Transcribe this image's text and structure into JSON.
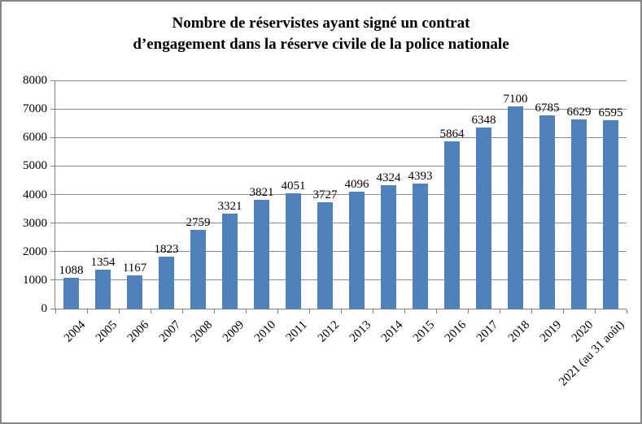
{
  "frame": {
    "background": "#FFFFFF",
    "border_color": "#878787"
  },
  "chart_data": {
    "type": "bar",
    "title": "Nombre de réservistes ayant signé un contrat d’engagement dans la réserve civile de la police nationale",
    "title_lines": [
      "Nombre de réservistes ayant signé un contrat",
      "d’engagement dans la réserve civile de la police nationale"
    ],
    "categories": [
      "2004",
      "2005",
      "2006",
      "2007",
      "2008",
      "2009",
      "2010",
      "2011",
      "2012",
      "2013",
      "2014",
      "2015",
      "2016",
      "2017",
      "2018",
      "2019",
      "2020",
      "2021 (au 31 août)"
    ],
    "values": [
      1088,
      1354,
      1167,
      1823,
      2759,
      3321,
      3821,
      4051,
      3727,
      4096,
      4324,
      4393,
      5864,
      6348,
      7100,
      6785,
      6629,
      6595
    ],
    "xlabel": "",
    "ylabel": "",
    "ylim": [
      0,
      8000
    ],
    "ytick_step": 1000,
    "ytick_labels": [
      "0",
      "1000",
      "2000",
      "3000",
      "4000",
      "5000",
      "6000",
      "7000",
      "8000"
    ],
    "data_labels": "above-bars",
    "grid": "horizontal",
    "legend": "none",
    "bar_color": "#4F81BD",
    "gridline_color": "#8C8C8C",
    "axis_color": "#7F7F7F",
    "text_color": "#000000"
  }
}
